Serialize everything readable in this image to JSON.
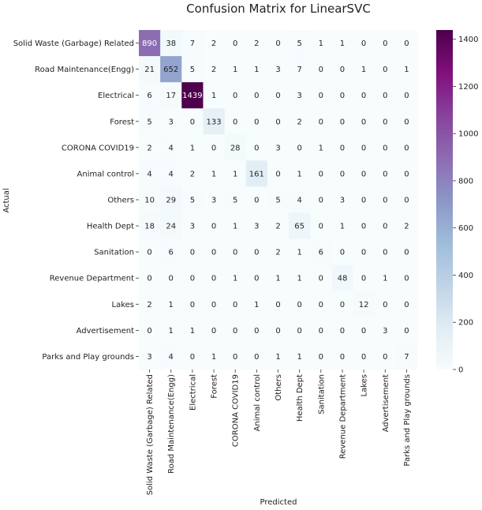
{
  "chart_data": {
    "type": "heatmap",
    "title": "Confusion Matrix for LinearSVC",
    "xlabel": "Predicted",
    "ylabel": "Actual",
    "labels": [
      "Solid Waste (Garbage) Related",
      "Road Maintenance(Engg)",
      "Electrical",
      "Forest",
      "CORONA COVID19",
      "Animal control",
      "Others",
      "Health Dept",
      "Sanitation",
      "Revenue Department",
      "Lakes",
      "Advertisement",
      "Parks and Play grounds"
    ],
    "matrix": [
      [
        890,
        38,
        7,
        2,
        0,
        2,
        0,
        5,
        1,
        1,
        0,
        0,
        0
      ],
      [
        21,
        652,
        5,
        2,
        1,
        1,
        3,
        7,
        0,
        0,
        1,
        0,
        1
      ],
      [
        6,
        17,
        1439,
        1,
        0,
        0,
        0,
        3,
        0,
        0,
        0,
        0,
        0
      ],
      [
        5,
        3,
        0,
        133,
        0,
        0,
        0,
        2,
        0,
        0,
        0,
        0,
        0
      ],
      [
        2,
        4,
        1,
        0,
        28,
        0,
        3,
        0,
        1,
        0,
        0,
        0,
        0
      ],
      [
        4,
        4,
        2,
        1,
        1,
        161,
        0,
        1,
        0,
        0,
        0,
        0,
        0
      ],
      [
        10,
        29,
        5,
        3,
        5,
        0,
        5,
        4,
        0,
        3,
        0,
        0,
        0
      ],
      [
        18,
        24,
        3,
        0,
        1,
        3,
        2,
        65,
        0,
        1,
        0,
        0,
        2
      ],
      [
        0,
        6,
        0,
        0,
        0,
        0,
        2,
        1,
        6,
        0,
        0,
        0,
        0
      ],
      [
        0,
        0,
        0,
        0,
        1,
        0,
        1,
        1,
        0,
        48,
        0,
        1,
        0
      ],
      [
        2,
        1,
        0,
        0,
        0,
        1,
        0,
        0,
        0,
        0,
        12,
        0,
        0
      ],
      [
        0,
        1,
        1,
        0,
        0,
        0,
        0,
        0,
        0,
        0,
        0,
        3,
        0
      ],
      [
        3,
        4,
        0,
        1,
        0,
        0,
        1,
        1,
        0,
        0,
        0,
        0,
        7
      ]
    ],
    "colorbar": {
      "min": 0,
      "max": 1439,
      "ticks": [
        0,
        200,
        400,
        600,
        800,
        1000,
        1200,
        1400
      ],
      "colormap": [
        "#f7fcfd",
        "#e0ecf4",
        "#bfd3e6",
        "#9ebcda",
        "#8c96c6",
        "#8c6bb1",
        "#88419d",
        "#810f7c",
        "#4d004b"
      ]
    },
    "grid": false,
    "legend": "colorbar-right"
  }
}
